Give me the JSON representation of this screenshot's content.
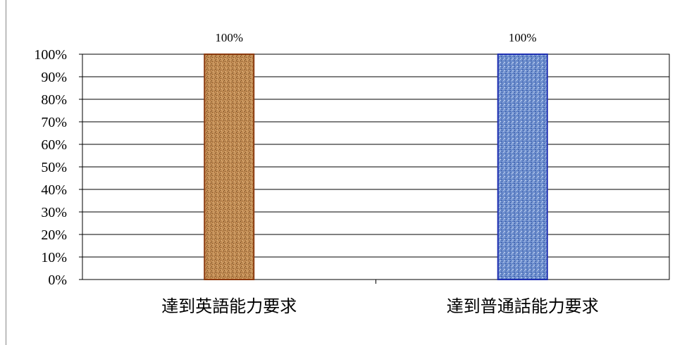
{
  "chart_data": {
    "type": "bar",
    "categories": [
      "達到英語能力要求",
      "達到普通話能力要求"
    ],
    "values": [
      100,
      100
    ],
    "data_labels": [
      "100%",
      "100%"
    ],
    "ylim": [
      0,
      100
    ],
    "y_ticks": [
      "0%",
      "10%",
      "20%",
      "30%",
      "40%",
      "50%",
      "60%",
      "70%",
      "80%",
      "90%",
      "100%"
    ],
    "grid": true,
    "legend": "none",
    "bar_colors": [
      "#b8834a",
      "#5b7fc4"
    ],
    "bar_border_colors": [
      "#8b3a0f",
      "#1f2fb0"
    ]
  }
}
